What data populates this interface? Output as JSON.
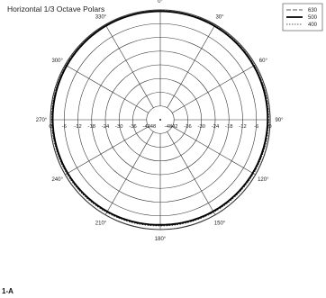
{
  "chart_data": {
    "type": "polar",
    "title": "Horizontal 1/3 Octave Polars",
    "figure_label": "1-A",
    "angle_labels": [
      "0°",
      "30°",
      "60°",
      "90°",
      "120°",
      "150°",
      "180°",
      "210°",
      "240°",
      "270°",
      "300°",
      "330°"
    ],
    "radial_labels": [
      "0",
      "-6",
      "-12",
      "-18",
      "-24",
      "-30",
      "-36",
      "-42",
      "-48"
    ],
    "radial_range": [
      -48,
      0
    ],
    "grid": true,
    "legend_position": "top-right",
    "series": [
      {
        "name": "630",
        "angles": [
          0,
          30,
          60,
          90,
          120,
          150,
          180,
          210,
          240,
          270,
          300,
          330
        ],
        "values": [
          -0.4,
          -0.5,
          -0.6,
          -0.8,
          -1.1,
          -1.5,
          -1.8,
          -1.4,
          -1.0,
          -0.7,
          -0.5,
          -0.4
        ]
      },
      {
        "name": "500",
        "angles": [
          0,
          30,
          60,
          90,
          120,
          150,
          180,
          210,
          240,
          270,
          300,
          330
        ],
        "values": [
          -0.6,
          -0.7,
          -0.9,
          -1.1,
          -1.4,
          -1.8,
          -2.1,
          -1.7,
          -1.3,
          -1.0,
          -0.8,
          -0.6
        ]
      },
      {
        "name": "400",
        "angles": [
          0,
          30,
          60,
          90,
          120,
          150,
          180,
          210,
          240,
          270,
          300,
          330
        ],
        "values": [
          -0.3,
          -0.4,
          -0.5,
          -0.6,
          -0.9,
          -1.3,
          -1.6,
          -1.2,
          -0.8,
          -0.5,
          -0.4,
          -0.3
        ]
      }
    ]
  }
}
